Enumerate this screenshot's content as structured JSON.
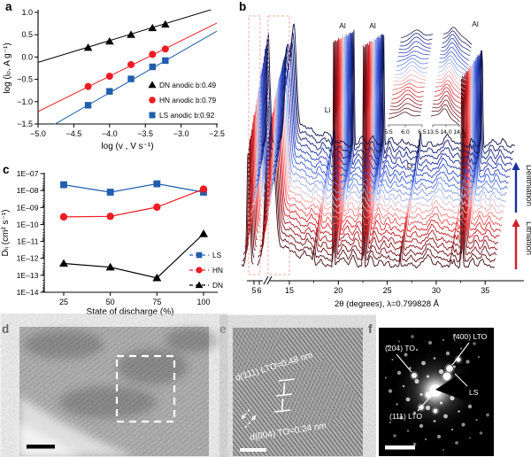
{
  "panels": {
    "a": {
      "label": "a"
    },
    "b": {
      "label": "b"
    },
    "c": {
      "label": "c"
    },
    "d": {
      "label": "d"
    },
    "e": {
      "label": "e",
      "annotations": {
        "d111": "d(111) LTO=0.48 nm",
        "d004": "d(004) TO=0.24 nm"
      }
    },
    "f": {
      "label": "f",
      "annotations": {
        "a204": "(204) TO",
        "a400": "(400) LTO",
        "a111": "(111) LTO",
        "ls": "LS"
      }
    }
  },
  "colors": {
    "red": "#ed1c24",
    "blue": "#1f5fad",
    "black": "#000000",
    "box_dash": "#f4a9a9",
    "delith_blue": "#1b2f9e",
    "lith_red": "#d21f26"
  },
  "chart_data": [
    {
      "id": "a",
      "type": "scatter",
      "xlabel": "log (v , V s⁻¹)",
      "ylabel": "log (iₚ, A g⁻¹)",
      "xlim": [
        -5.0,
        -2.5
      ],
      "ylim": [
        -1.5,
        1.0
      ],
      "xticks": [
        -5.0,
        -4.5,
        -4.0,
        -3.5,
        -3.0,
        -2.5
      ],
      "xtick_labels": [
        "−5.0",
        "−4.5",
        "−4.0",
        "−3.5",
        "−3.0",
        "−2.5"
      ],
      "yticks": [
        1.0,
        0.5,
        0.0,
        -0.5,
        -1.0,
        -1.5
      ],
      "ytick_labels": [
        "1.0",
        "0.5",
        "0.0",
        "−0.5",
        "−1.0",
        "−1.5"
      ],
      "x": [
        -4.3,
        -4.0,
        -3.7,
        -3.4,
        -3.22
      ],
      "series": [
        {
          "name": "DN anodic b:0.49",
          "marker": "triangle",
          "color": "#000000",
          "y": [
            0.21,
            0.35,
            0.5,
            0.65,
            0.73
          ],
          "fit_line": {
            "x1": -5.0,
            "y1": -0.12,
            "x2": -2.5,
            "y2": 1.1
          }
        },
        {
          "name": "HN anodic b:0.79",
          "marker": "circle",
          "color": "#ed1c24",
          "y": [
            -0.66,
            -0.43,
            -0.17,
            0.06,
            0.18
          ],
          "fit_line": {
            "x1": -5.0,
            "y1": -1.22,
            "x2": -2.5,
            "y2": 0.76
          }
        },
        {
          "name": "LS anodic b:0.92",
          "marker": "square",
          "color": "#1f5fad",
          "y": [
            -1.08,
            -0.77,
            -0.49,
            -0.22,
            -0.08
          ],
          "fit_line": {
            "x1": -5.0,
            "y1": -1.72,
            "x2": -2.5,
            "y2": 0.58
          }
        }
      ]
    },
    {
      "id": "c",
      "type": "line",
      "xlabel": "State of discharge (%)",
      "ylabel": "Dₗᵢ (cm² s⁻¹)",
      "x": [
        25,
        50,
        75,
        100
      ],
      "xtick_labels": [
        "25",
        "50",
        "75",
        "100"
      ],
      "ylog_range": [
        -14,
        -7
      ],
      "ytick_labels": [
        "1E–07",
        "1E–08",
        "1E–09",
        "1E–10",
        "1E–11",
        "1E–12",
        "1E–13",
        "1E–14"
      ],
      "series": [
        {
          "name": "LS",
          "marker": "square",
          "color": "#1f5fad",
          "y": [
            2.2e-08,
            8e-09,
            2.5e-08,
            8e-09
          ]
        },
        {
          "name": "HN",
          "marker": "circle",
          "color": "#ed1c24",
          "y": [
            2.8e-10,
            3e-10,
            1.05e-09,
            1.2e-08
          ]
        },
        {
          "name": "DN",
          "marker": "triangle",
          "color": "#000000",
          "y": [
            5e-13,
            3e-13,
            7e-14,
            2.8e-11
          ]
        }
      ]
    },
    {
      "id": "b",
      "type": "line",
      "subtype": "xrd-waterfall",
      "xlabel": "2θ (degrees), λ=0.799828 Å",
      "xticks": [
        5,
        6,
        15,
        20,
        25,
        30,
        35
      ],
      "xtick_labels": [
        "5",
        "6",
        "15",
        "20",
        "25",
        "30",
        "35"
      ],
      "axis_break": [
        6.8,
        12.8
      ],
      "n_curves": 21,
      "peaks": [
        {
          "c": 5.78,
          "h": 118,
          "w": 0.27
        },
        {
          "c": 6.18,
          "h": 40,
          "w": 0.2
        },
        {
          "c": 5.9,
          "h": 10,
          "w": 0.8
        },
        {
          "c": 13.75,
          "h": 105,
          "w": 0.33,
          "dh10": -2.0
        },
        {
          "c": 14.42,
          "h": 80,
          "w": 0.34,
          "dh10": 2.4
        },
        {
          "c": 14.1,
          "h": 30,
          "w": 0.85
        },
        {
          "c": 15.6,
          "h": 16,
          "w": 1.1
        },
        {
          "c": 17.0,
          "h": 8,
          "w": 1.8
        },
        {
          "c": 17.65,
          "h": 9,
          "w": 0.3
        },
        {
          "c": 18.12,
          "h": 6,
          "w": 0.2
        },
        {
          "c": 18.52,
          "h": 15,
          "w": 0.09,
          "id": "Li"
        },
        {
          "c": 19.3,
          "h": 5,
          "w": 0.25
        },
        {
          "c": 20.55,
          "h": -1,
          "w": 0.075,
          "id": "Al"
        },
        {
          "c": 21.4,
          "h": 10,
          "w": 0.45
        },
        {
          "c": 22.5,
          "h": 11,
          "w": 0.35
        },
        {
          "c": 23.6,
          "h": -1,
          "w": 0.075,
          "id": "Al"
        },
        {
          "c": 24.35,
          "h": 11,
          "w": 0.3
        },
        {
          "c": 25.4,
          "h": 7,
          "w": 0.3
        },
        {
          "c": 26.1,
          "h": 5,
          "w": 0.2
        },
        {
          "c": 27.35,
          "h": 16,
          "w": 0.07,
          "id": "Li"
        },
        {
          "c": 28.3,
          "h": 4,
          "w": 0.3
        },
        {
          "c": 30.15,
          "h": 12,
          "w": 0.55
        },
        {
          "c": 31.3,
          "h": 4,
          "w": 0.3
        },
        {
          "c": 32.55,
          "h": 8,
          "w": 0.13,
          "id": "Li"
        },
        {
          "c": 32.85,
          "h": 6,
          "w": 0.12
        },
        {
          "c": 33.65,
          "h": -0.88,
          "w": 0.09,
          "id": "Al"
        },
        {
          "c": 34.75,
          "h": 8,
          "w": 0.3
        },
        {
          "c": 35.75,
          "h": 8,
          "w": 0.3
        }
      ],
      "peak_labels": [
        {
          "text": "Li",
          "two_theta": 18.5,
          "x": 105,
          "y": 127
        },
        {
          "text": "Al",
          "two_theta": 20.5,
          "x": 122,
          "y": 32
        },
        {
          "text": "Al",
          "two_theta": 23.6,
          "x": 156,
          "y": 32
        },
        {
          "text": "Li",
          "two_theta": 27.3,
          "x": 198,
          "y": 190
        },
        {
          "text": "Li",
          "two_theta": 32.5,
          "x": 258,
          "y": 156
        },
        {
          "text": "Al",
          "two_theta": 33.6,
          "x": 272,
          "y": 30
        }
      ],
      "arrows": [
        {
          "text": "Delithiation",
          "color": "#1b2f9e",
          "direction": "up"
        },
        {
          "text": "Lithiation",
          "color": "#d21f26",
          "direction": "up"
        }
      ],
      "insets": [
        {
          "xtick_labels": [
            "5.5",
            "6.0",
            "6.5"
          ]
        },
        {
          "xtick_labels": [
            "13.5",
            "14.0",
            "14.5"
          ]
        }
      ],
      "highlight_box_color": "#f4a9a9",
      "color_stops": [
        [
          0,
          "#400a10"
        ],
        [
          3,
          "#8c1218"
        ],
        [
          6,
          "#e3262b"
        ],
        [
          8,
          "#f58080"
        ],
        [
          9.6,
          "#f6bcbc"
        ],
        [
          10.4,
          "#bcc9f0"
        ],
        [
          12,
          "#7f9ae8"
        ],
        [
          14,
          "#3c5cdc"
        ],
        [
          17,
          "#1d309f"
        ],
        [
          20,
          "#0d1148"
        ]
      ]
    }
  ]
}
